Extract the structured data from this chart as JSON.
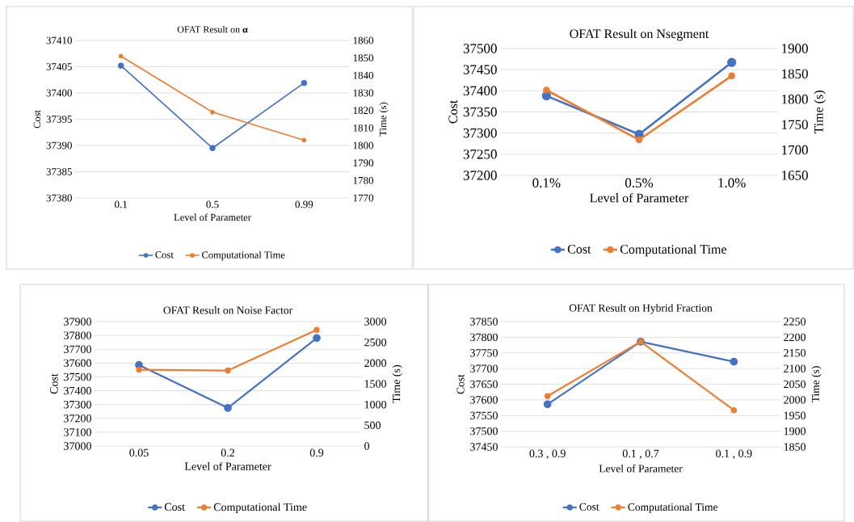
{
  "chart_data": [
    {
      "type": "line",
      "title": "OFAT Result on **α**",
      "xlabel": "Level of Parameter",
      "ylabel": "Cost",
      "y2label": "Time (s)",
      "categories": [
        "0.1",
        "0.5",
        "0.99"
      ],
      "series": [
        {
          "name": "Cost",
          "color": "#4472c4",
          "values": [
            37405.2,
            37389.5,
            37401.9
          ]
        },
        {
          "name": "Computational Time",
          "color": "#ed7d31",
          "values": [
            1851,
            1819,
            1803
          ],
          "axis": "y2"
        }
      ],
      "ylim": [
        37380,
        37410
      ],
      "yticks": [
        37380,
        37385,
        37390,
        37395,
        37400,
        37405,
        37410
      ],
      "y2lim": [
        1770,
        1860
      ],
      "y2ticks": [
        1770,
        1780,
        1790,
        1800,
        1810,
        1820,
        1830,
        1840,
        1850,
        1860
      ],
      "grid": "y",
      "legend": "bottom",
      "marker": "circle",
      "line_style": "solid"
    },
    {
      "type": "line",
      "title": "OFAT Result on Nsegment",
      "xlabel": "Level of Parameter",
      "ylabel": "Cost",
      "y2label": "Time (s)",
      "categories": [
        "0.1%",
        "0.5%",
        "1.0%"
      ],
      "series": [
        {
          "name": "Cost",
          "color": "#4472c4",
          "values": [
            37388,
            37297,
            37467
          ]
        },
        {
          "name": "Computational Time",
          "color": "#ed7d31",
          "values": [
            1818,
            1720,
            1846
          ],
          "axis": "y2"
        }
      ],
      "ylim": [
        37200,
        37500
      ],
      "yticks": [
        37200,
        37250,
        37300,
        37350,
        37400,
        37450,
        37500
      ],
      "y2lim": [
        1650,
        1900
      ],
      "y2ticks": [
        1650,
        1700,
        1750,
        1800,
        1850,
        1900
      ],
      "grid": "y",
      "legend": "bottom",
      "marker": "circle",
      "line_style": "solid"
    },
    {
      "type": "line",
      "title": "OFAT Result on Noise Factor",
      "xlabel": "Level of Parameter",
      "ylabel": "Cost",
      "y2label": "Time (s)",
      "categories": [
        "0.05",
        "0.2",
        "0.9"
      ],
      "series": [
        {
          "name": "Cost",
          "color": "#4472c4",
          "values": [
            37586,
            37276,
            37781
          ]
        },
        {
          "name": "Computational Time",
          "color": "#ed7d31",
          "values": [
            1840,
            1820,
            2800
          ],
          "axis": "y2"
        }
      ],
      "ylim": [
        37000,
        37900
      ],
      "yticks": [
        37000,
        37100,
        37200,
        37300,
        37400,
        37500,
        37600,
        37700,
        37800,
        37900
      ],
      "y2lim": [
        0,
        3000
      ],
      "y2ticks": [
        0,
        500,
        1000,
        1500,
        2000,
        2500,
        3000
      ],
      "grid": "y",
      "legend": "bottom",
      "marker": "circle",
      "line_style": "solid"
    },
    {
      "type": "line",
      "title": "OFAT Result on Hybrid Fraction",
      "xlabel": "Level of Parameter",
      "ylabel": "Cost",
      "y2label": "Time (s)",
      "categories": [
        "0.3 , 0.9",
        "0.1 , 0.7",
        "0.1 , 0.9"
      ],
      "series": [
        {
          "name": "Cost",
          "color": "#4472c4",
          "values": [
            37586,
            37786,
            37722
          ]
        },
        {
          "name": "Computational Time",
          "color": "#ed7d31",
          "values": [
            2012,
            2186,
            1967
          ],
          "axis": "y2"
        }
      ],
      "ylim": [
        37450,
        37850
      ],
      "yticks": [
        37450,
        37500,
        37550,
        37600,
        37650,
        37700,
        37750,
        37800,
        37850
      ],
      "y2lim": [
        1850,
        2250
      ],
      "y2ticks": [
        1850,
        1900,
        1950,
        2000,
        2050,
        2100,
        2150,
        2200,
        2250
      ],
      "grid": "y",
      "legend": "bottom",
      "marker": "circle",
      "line_style": "solid"
    }
  ]
}
